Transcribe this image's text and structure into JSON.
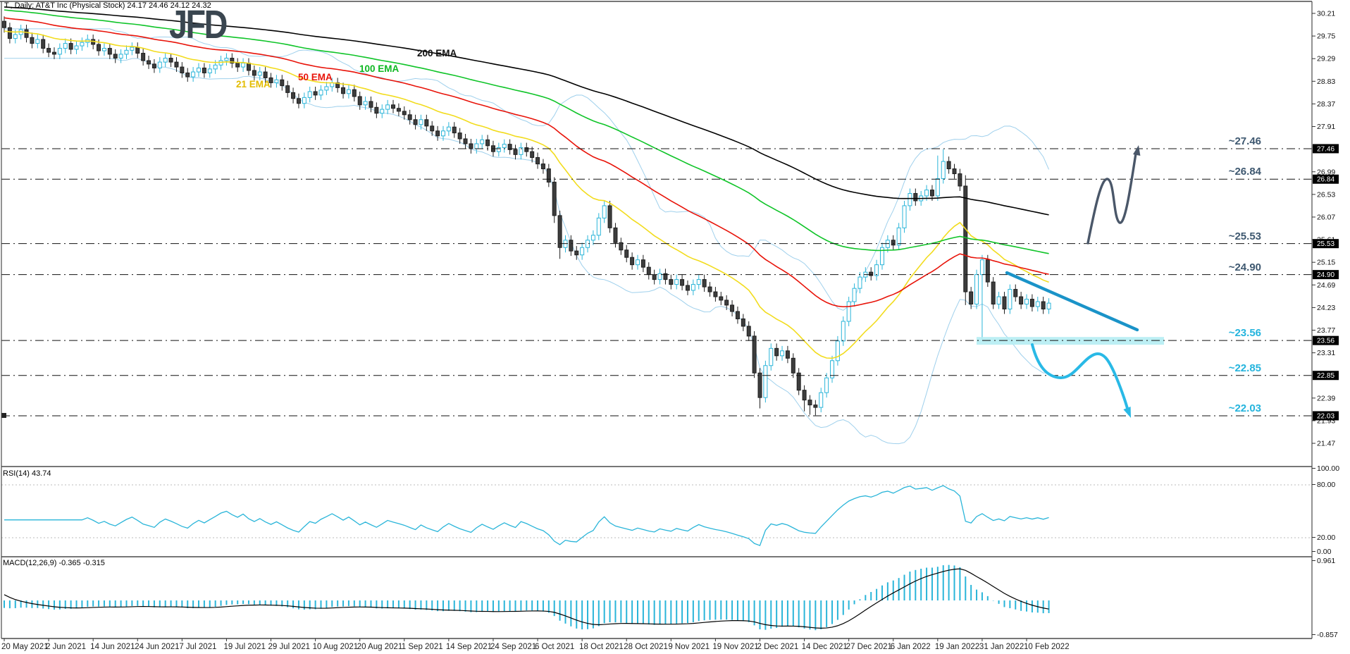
{
  "window": {
    "title": "T., Daily:  AT&T Inc (Physical Stock)  24.17 24.46 24.12 24.32",
    "symbol": "T.",
    "timeframe": "Daily",
    "instrument": "AT&T Inc (Physical Stock)"
  },
  "logo": {
    "text": "JFD",
    "color": "#3a4650"
  },
  "ema_labels": [
    {
      "label": "21 EMA",
      "color": "#e3bc00"
    },
    {
      "label": "50 EMA",
      "color": "#e81309"
    },
    {
      "label": "100 EMA",
      "color": "#0eb822"
    },
    {
      "label": "200 EMA",
      "color": "#111111"
    }
  ],
  "levels": [
    {
      "label": "~27.46",
      "price": 27.46,
      "badge": "27.46",
      "color": "#3e5870",
      "role": "resistance-target"
    },
    {
      "label": "~26.84",
      "price": 26.84,
      "badge": "26.84",
      "color": "#3e5870",
      "role": "resistance"
    },
    {
      "label": "~25.53",
      "price": 25.53,
      "badge": "25.53",
      "color": "#3e5870",
      "role": "resistance"
    },
    {
      "label": "~24.90",
      "price": 24.9,
      "badge": "24.90",
      "color": "#3e5870",
      "role": "resistance"
    },
    {
      "label": "~23.56",
      "price": 23.56,
      "badge": "23.56",
      "color": "#25b4dd",
      "role": "support"
    },
    {
      "label": "~22.85",
      "price": 22.85,
      "badge": "22.85",
      "color": "#25b4dd",
      "role": "support"
    },
    {
      "label": "~22.03",
      "price": 22.03,
      "badge": "22.03",
      "color": "#25b4dd",
      "role": "support-target"
    }
  ],
  "rsi_panel": {
    "label": "RSI(14) 43.74",
    "period": 14,
    "value": 43.74,
    "ticks": [
      "100.00",
      "80.00",
      "20.00",
      "0.00"
    ],
    "upper_level": 80,
    "lower_level": 20
  },
  "macd_panel": {
    "label": "MACD(12,26,9) -0.365 -0.315",
    "fast": 12,
    "slow": 26,
    "signal_period": 9,
    "macd_value": -0.365,
    "signal_value": -0.315,
    "ticks": [
      "0.961",
      "-0.857"
    ]
  },
  "annotations": [
    {
      "name": "bullish-path-arrow",
      "description": "gray squiggle arrow from ~25.53 over ~26.84 pointing up to ~27.46",
      "color": "#4a5769"
    },
    {
      "name": "resistance-trendline",
      "description": "thick descending teal trendline over Feb candles",
      "color": "#1a93c8"
    },
    {
      "name": "support-zone-highlight",
      "description": "pale cyan band along ~23.56 support",
      "color": "#b5edf3"
    },
    {
      "name": "bearish-path-arrow",
      "description": "cyan curved arrow from ~23.56 down to ~22.03",
      "color": "#29b9e6"
    }
  ],
  "chart_data": {
    "type": "candlestick",
    "title": "T., Daily: AT&T Inc (Physical Stock)",
    "last_ohlc": {
      "open": 24.17,
      "high": 24.46,
      "low": 24.12,
      "close": 24.32
    },
    "price_axis": {
      "min": 21.0,
      "max": 30.37,
      "tick_step": 0.46
    },
    "price_ticks": [
      "30.21",
      "29.75",
      "29.29",
      "28.83",
      "28.37",
      "27.91",
      "26.99",
      "26.53",
      "26.07",
      "25.61",
      "25.15",
      "24.69",
      "24.23",
      "23.77",
      "23.31",
      "22.39",
      "21.93",
      "21.47"
    ],
    "key_levels": [
      27.46,
      26.84,
      25.53,
      24.9,
      23.56,
      22.85,
      22.03
    ],
    "date_labels": [
      "20 May 2021",
      "2 Jun 2021",
      "14 Jun 2021",
      "24 Jun 2021",
      "7 Jul 2021",
      "19 Jul 2021",
      "29 Jul 2021",
      "10 Aug 2021",
      "20 Aug 2021",
      "1 Sep 2021",
      "14 Sep 2021",
      "24 Sep 2021",
      "6 Oct 2021",
      "18 Oct 2021",
      "28 Oct 2021",
      "9 Nov 2021",
      "19 Nov 2021",
      "2 Dec 2021",
      "14 Dec 2021",
      "27 Dec 2021",
      "6 Jan 2022",
      "19 Jan 2022",
      "31 Jan 2022",
      "10 Feb 2022"
    ],
    "label_every": 8,
    "first_open": 30.05,
    "closes": [
      29.92,
      29.7,
      29.78,
      29.88,
      29.72,
      29.6,
      29.68,
      29.5,
      29.42,
      29.38,
      29.5,
      29.6,
      29.48,
      29.55,
      29.62,
      29.68,
      29.58,
      29.45,
      29.5,
      29.38,
      29.3,
      29.38,
      29.46,
      29.52,
      29.4,
      29.25,
      29.18,
      29.1,
      29.22,
      29.3,
      29.22,
      29.12,
      29.0,
      28.92,
      29.02,
      29.1,
      29.0,
      29.08,
      29.16,
      29.25,
      29.3,
      29.2,
      29.12,
      29.2,
      29.05,
      28.95,
      29.02,
      28.9,
      28.8,
      28.86,
      28.74,
      28.6,
      28.48,
      28.38,
      28.5,
      28.62,
      28.55,
      28.65,
      28.72,
      28.8,
      28.7,
      28.58,
      28.66,
      28.52,
      28.35,
      28.42,
      28.3,
      28.18,
      28.26,
      28.35,
      28.28,
      28.22,
      28.15,
      28.05,
      27.95,
      28.05,
      27.92,
      27.82,
      27.72,
      27.82,
      27.9,
      27.78,
      27.66,
      27.56,
      27.46,
      27.56,
      27.64,
      27.52,
      27.4,
      27.48,
      27.55,
      27.44,
      27.34,
      27.48,
      27.4,
      27.28,
      27.15,
      27.05,
      26.78,
      26.1,
      25.45,
      25.6,
      25.38,
      25.3,
      25.45,
      25.6,
      25.7,
      26.05,
      26.3,
      25.85,
      25.55,
      25.4,
      25.25,
      25.1,
      25.2,
      25.05,
      24.9,
      24.8,
      24.92,
      24.8,
      24.7,
      24.8,
      24.68,
      24.58,
      24.7,
      24.8,
      24.65,
      24.55,
      24.45,
      24.38,
      24.28,
      24.15,
      24.0,
      23.85,
      23.65,
      22.9,
      22.4,
      23.05,
      23.4,
      23.25,
      23.35,
      23.2,
      22.9,
      22.55,
      22.35,
      22.25,
      22.2,
      22.5,
      22.8,
      23.15,
      23.55,
      23.95,
      24.35,
      24.62,
      24.85,
      24.95,
      24.88,
      25.1,
      25.45,
      25.6,
      25.5,
      25.85,
      26.3,
      26.55,
      26.4,
      26.5,
      26.62,
      26.5,
      26.85,
      27.2,
      27.05,
      26.95,
      26.7,
      24.55,
      24.3,
      24.9,
      25.2,
      24.75,
      24.3,
      24.45,
      24.2,
      24.6,
      24.45,
      24.3,
      24.4,
      24.25,
      24.35,
      24.2,
      24.32
    ],
    "wick_overrides": {
      "99": {
        "low": 25.95
      },
      "100": {
        "low": 25.22
      },
      "136": {
        "low": 22.18
      },
      "144": {
        "low": 22.12
      },
      "145": {
        "low": 22.05
      },
      "146": {
        "low": 22.04
      },
      "168": {
        "high": 27.32
      },
      "169": {
        "high": 27.45
      },
      "173": {
        "high": 26.92,
        "low": 24.28
      },
      "176": {
        "low": 23.58
      }
    },
    "indicators": {
      "ema_periods": [
        21,
        50,
        100,
        200
      ],
      "bollinger": {
        "period": 20,
        "deviation": 2
      },
      "rsi_period": 14,
      "macd": [
        12,
        26,
        9
      ]
    },
    "rsi_range": [
      0,
      100
    ],
    "macd_range": [
      -0.857,
      0.961
    ],
    "colors": {
      "up_candle": "#2ab5d9",
      "down_candle": "#3d3d3d",
      "ema21": "#f2dc1e",
      "ema50": "#e81309",
      "ema100": "#0fc428",
      "ema200": "#000000",
      "bollinger": "#9fd0ec",
      "rsi_line": "#2ab5d9",
      "macd_bar": "#2ab5d9",
      "macd_signal": "#000000",
      "slate": "#4a5769",
      "cyan": "#29b9e6",
      "trendline": "#1a93c8",
      "band": "#b5edf3"
    }
  }
}
